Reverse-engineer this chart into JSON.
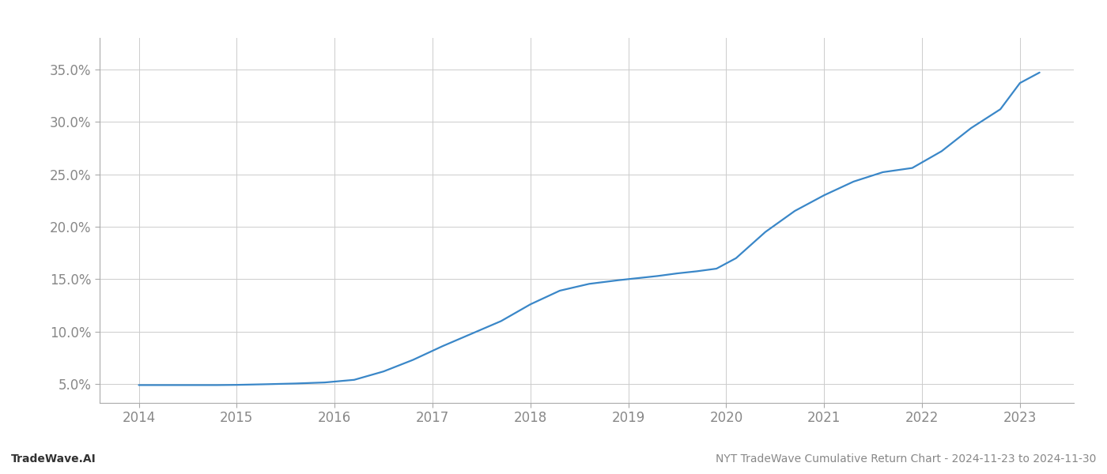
{
  "x_years": [
    2014.0,
    2014.2,
    2014.5,
    2014.8,
    2015.0,
    2015.3,
    2015.6,
    2015.9,
    2016.2,
    2016.5,
    2016.8,
    2017.1,
    2017.4,
    2017.7,
    2018.0,
    2018.3,
    2018.6,
    2018.9,
    2019.1,
    2019.3,
    2019.5,
    2019.7,
    2019.9,
    2020.1,
    2020.4,
    2020.7,
    2021.0,
    2021.3,
    2021.6,
    2021.9,
    2022.2,
    2022.5,
    2022.8,
    2023.0,
    2023.2
  ],
  "y_values": [
    0.049,
    0.049,
    0.049,
    0.049,
    0.0492,
    0.0498,
    0.0505,
    0.0515,
    0.054,
    0.062,
    0.073,
    0.086,
    0.098,
    0.11,
    0.126,
    0.139,
    0.1455,
    0.149,
    0.151,
    0.153,
    0.1555,
    0.1575,
    0.16,
    0.17,
    0.195,
    0.215,
    0.23,
    0.243,
    0.252,
    0.256,
    0.272,
    0.294,
    0.312,
    0.337,
    0.347
  ],
  "line_color": "#3a87c8",
  "line_width": 1.6,
  "background_color": "#ffffff",
  "grid_color": "#cccccc",
  "title": "NYT TradeWave Cumulative Return Chart - 2024-11-23 to 2024-11-30",
  "footer_left": "TradeWave.AI",
  "x_tick_labels": [
    "2014",
    "2015",
    "2016",
    "2017",
    "2018",
    "2019",
    "2020",
    "2021",
    "2022",
    "2023"
  ],
  "x_tick_positions": [
    2014,
    2015,
    2016,
    2017,
    2018,
    2019,
    2020,
    2021,
    2022,
    2023
  ],
  "y_ticks": [
    0.05,
    0.1,
    0.15,
    0.2,
    0.25,
    0.3,
    0.35
  ],
  "xlim": [
    2013.6,
    2023.55
  ],
  "ylim": [
    0.032,
    0.38
  ]
}
